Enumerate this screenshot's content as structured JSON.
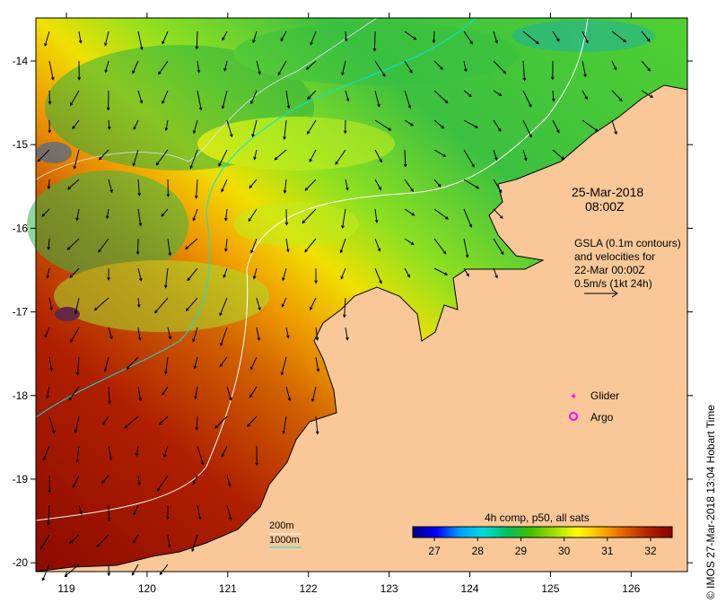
{
  "timestamp": {
    "date": "25-Mar-2018",
    "time": "08:00Z"
  },
  "gsla_note": {
    "lines": [
      "GSLA (0.1m contours)",
      "and velocities for",
      "22-Mar 00:00Z",
      "0.5m/s (1kt 24h)"
    ]
  },
  "legend": {
    "glider": "Glider",
    "argo": "Argo",
    "glider_color": "#ff00ff",
    "argo_color": "#ff00ff"
  },
  "depth_legend": {
    "line1": "200m",
    "line2": "1000m",
    "color1": "#ffffff",
    "color2": "#00e5e5"
  },
  "colorbar": {
    "title": "4h comp, p50, all sats",
    "ticks": [
      "27",
      "28",
      "29",
      "30",
      "31",
      "32"
    ],
    "range": [
      26.5,
      32.5
    ],
    "stops": [
      "#00007f",
      "#0000ff",
      "#00a0ff",
      "#00dddd",
      "#00c060",
      "#40c000",
      "#a0e000",
      "#ffff00",
      "#ffb000",
      "#e06000",
      "#b02000",
      "#8b0000"
    ]
  },
  "axes": {
    "x_ticks": [
      "119",
      "120",
      "121",
      "122",
      "123",
      "124",
      "125",
      "126"
    ],
    "y_ticks": [
      "-14",
      "-15",
      "-16",
      "-17",
      "-18",
      "-19",
      "-20"
    ]
  },
  "credit": "© IMOS 27-Mar-2018 13:04 Hobart Time",
  "colors": {
    "land": "#fac898",
    "coastline": "#000000",
    "warm_sst": "#a01000",
    "cool_sst": "#30c030"
  }
}
